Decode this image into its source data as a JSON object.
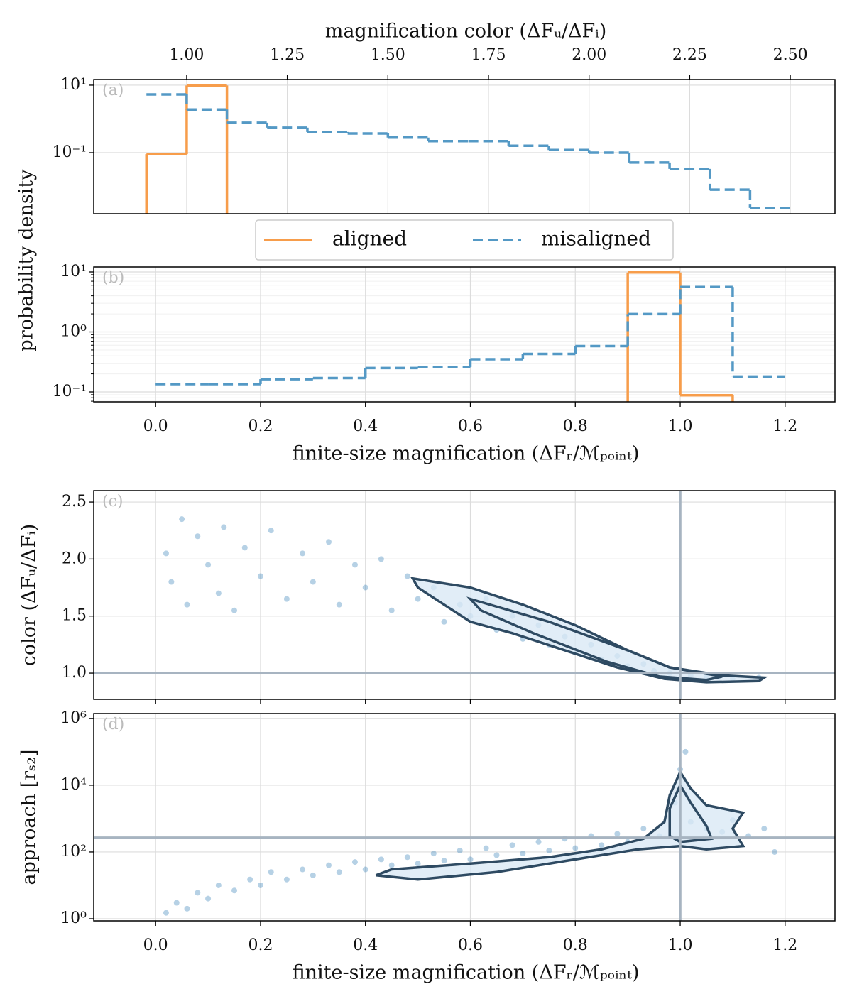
{
  "shared_ylabel": "probability density",
  "chart_data": [
    {
      "type": "histogram",
      "panel_label": "(a)",
      "xlabel": "magnification color (ΔFᵤ/ΔFᵢ)",
      "xlabel_position": "top",
      "xlim": [
        0.769,
        2.611
      ],
      "xticks": [
        {
          "value": 1,
          "label": "1.00"
        },
        1.25,
        {
          "value": 1.5,
          "label": "1.50"
        },
        1.75,
        {
          "value": 2,
          "label": "2.00"
        },
        2.25,
        {
          "value": 2.5,
          "label": "2.50"
        }
      ],
      "y_log": true,
      "ylim": [
        0.00155,
        14.7
      ],
      "yticks": [
        {
          "value": 10,
          "label": "10¹"
        },
        {
          "value": 0.1,
          "label": "10⁻¹"
        }
      ],
      "grid": true,
      "legend": "below",
      "series": [
        {
          "name": "aligned",
          "color": "#f79d4b",
          "linestyle": "solid",
          "closed": true,
          "bins": [
            0.9,
            1.0,
            1.1
          ],
          "values": [
            0.09,
            9.8
          ]
        },
        {
          "name": "misaligned",
          "color": "#5499c5",
          "linestyle": "dashed",
          "closed": false,
          "bins": [
            0.9,
            1.0,
            1.1,
            1.2,
            1.3,
            1.4,
            1.5,
            1.6,
            1.7,
            1.8,
            1.9,
            2.0,
            2.1,
            2.2,
            2.3,
            2.4,
            2.5
          ],
          "values": [
            5.3,
            1.9,
            0.77,
            0.55,
            0.41,
            0.37,
            0.28,
            0.22,
            0.22,
            0.16,
            0.12,
            0.1,
            0.051,
            0.033,
            0.008,
            0.0023
          ]
        }
      ]
    },
    {
      "type": "histogram",
      "panel_label": "(b)",
      "xlabel": "finite-size magnification (ΔFᵣ/ℳₚₒᵢₙₜ)",
      "xlabel_position": "bottom",
      "xlim": [
        -0.118,
        1.295
      ],
      "xticks": [
        {
          "value": 0,
          "label": "0.0"
        },
        0.2,
        0.4,
        0.6,
        0.8,
        {
          "value": 1,
          "label": "1.0"
        },
        1.2
      ],
      "y_log": true,
      "ylim": [
        0.0683,
        12.1
      ],
      "yticks": [
        {
          "value": 10,
          "label": "10¹"
        },
        {
          "value": 1,
          "label": "10⁰"
        },
        {
          "value": 0.1,
          "label": "10⁻¹"
        }
      ],
      "grid": true,
      "minor_grid": true,
      "series": [
        {
          "color": "#f79d4b",
          "linestyle": "solid",
          "closed": true,
          "bins": [
            0.9,
            1.0,
            1.1
          ],
          "values": [
            9.8,
            0.088
          ]
        },
        {
          "color": "#5499c5",
          "linestyle": "dashed",
          "closed": false,
          "bins": [
            0.0,
            0.1,
            0.2,
            0.3,
            0.4,
            0.5,
            0.6,
            0.7,
            0.8,
            0.9,
            1.0,
            1.1,
            1.2
          ],
          "values": [
            0.135,
            0.135,
            0.163,
            0.17,
            0.25,
            0.26,
            0.35,
            0.43,
            0.58,
            1.98,
            5.6,
            0.18
          ]
        }
      ]
    },
    {
      "type": "scatter",
      "panel_label": "(c)",
      "ylabel": "color (ΔFᵤ/ΔFᵢ)",
      "xlim": [
        -0.118,
        1.295
      ],
      "xticks": [
        0,
        0.2,
        0.4,
        0.6,
        0.8,
        1,
        1.2
      ],
      "xtick_labels": false,
      "y_log": false,
      "ylim": [
        0.77,
        2.6
      ],
      "yticks": [
        {
          "value": 1,
          "label": "1.0"
        },
        1.5,
        {
          "value": 2,
          "label": "2.0"
        },
        2.5
      ],
      "grid": true,
      "point_color": "#2f7bb5",
      "contour_color": "#2e4a62",
      "contour_fill": "#d9e8f5",
      "ref_color": "#a7b4c1",
      "ref_lines": {
        "x": 1.0,
        "y": 1.0
      },
      "points": {
        "x": [
          0.02,
          0.03,
          0.05,
          0.06,
          0.08,
          0.1,
          0.12,
          0.13,
          0.15,
          0.17,
          0.2,
          0.22,
          0.25,
          0.28,
          0.3,
          0.33,
          0.35,
          0.38,
          0.4,
          0.43,
          0.45,
          0.48,
          0.5,
          0.53,
          0.55,
          0.58,
          0.6,
          0.63,
          0.65,
          0.68,
          0.7,
          0.73,
          0.75,
          0.78,
          0.8,
          0.83,
          0.85,
          0.88,
          0.9,
          0.93,
          0.95,
          0.98,
          1.02,
          1.05,
          1.1,
          1.15
        ],
        "y": [
          2.05,
          1.8,
          2.35,
          1.6,
          2.2,
          1.95,
          1.7,
          2.28,
          1.55,
          2.1,
          1.85,
          2.25,
          1.65,
          2.05,
          1.8,
          2.15,
          1.6,
          1.95,
          1.75,
          2.0,
          1.55,
          1.85,
          1.65,
          1.75,
          1.45,
          1.6,
          1.5,
          1.65,
          1.38,
          1.5,
          1.3,
          1.42,
          1.25,
          1.32,
          1.18,
          1.25,
          1.12,
          1.15,
          1.06,
          1.08,
          1.02,
          1.0,
          0.98,
          0.96,
          0.95,
          0.96
        ]
      },
      "contours": [
        {
          "x": [
            0.49,
            0.6,
            0.7,
            0.8,
            0.9,
            0.98,
            1.08,
            1.16,
            1.15,
            1.05,
            0.97,
            0.88,
            0.78,
            0.68,
            0.6,
            0.55,
            0.5
          ],
          "y": [
            1.83,
            1.75,
            1.6,
            1.42,
            1.2,
            1.05,
            0.98,
            0.96,
            0.93,
            0.92,
            0.95,
            1.05,
            1.2,
            1.35,
            1.45,
            1.6,
            1.75
          ]
        },
        {
          "x": [
            0.6,
            0.75,
            0.9,
            0.98,
            1.08,
            1.05,
            0.96,
            0.86,
            0.72,
            0.62
          ],
          "y": [
            1.65,
            1.45,
            1.2,
            1.05,
            0.97,
            0.94,
            0.97,
            1.1,
            1.35,
            1.55
          ]
        }
      ]
    },
    {
      "type": "scatter",
      "panel_label": "(d)",
      "ylabel": "approach [rₛ₂]",
      "xlabel": "finite-size magnification (ΔFᵣ/ℳₚₒᵢₙₜ)",
      "xlabel_position": "bottom",
      "xlim": [
        -0.118,
        1.295
      ],
      "xticks": [
        {
          "value": 0,
          "label": "0.0"
        },
        0.2,
        0.4,
        0.6,
        0.8,
        {
          "value": 1,
          "label": "1.0"
        },
        1.2
      ],
      "y_log": true,
      "ylim": [
        0.863,
        1400000
      ],
      "yticks": [
        {
          "value": 1,
          "label": "10⁰"
        },
        {
          "value": 100,
          "label": "10²"
        },
        {
          "value": 10000,
          "label": "10⁴"
        },
        {
          "value": 1000000,
          "label": "10⁶"
        }
      ],
      "grid": true,
      "point_color": "#2f7bb5",
      "contour_color": "#2e4a62",
      "contour_fill": "#d9e8f5",
      "ref_color": "#a7b4c1",
      "ref_lines": {
        "x": 1.0,
        "y": 268
      },
      "points": {
        "x": [
          0.02,
          0.04,
          0.06,
          0.08,
          0.1,
          0.12,
          0.15,
          0.18,
          0.2,
          0.22,
          0.25,
          0.28,
          0.3,
          0.33,
          0.35,
          0.38,
          0.4,
          0.43,
          0.45,
          0.48,
          0.5,
          0.53,
          0.55,
          0.58,
          0.6,
          0.63,
          0.65,
          0.68,
          0.7,
          0.73,
          0.75,
          0.78,
          0.8,
          0.83,
          0.85,
          0.88,
          0.9,
          0.93,
          0.96,
          0.99,
          1.0,
          1.01,
          1.02,
          1.05,
          1.08,
          1.1,
          1.13,
          1.16,
          1.18
        ],
        "y": [
          1.5,
          3,
          2,
          6,
          4,
          10,
          7,
          15,
          10,
          25,
          15,
          30,
          20,
          40,
          25,
          50,
          30,
          60,
          40,
          70,
          45,
          90,
          55,
          110,
          60,
          130,
          80,
          160,
          90,
          200,
          110,
          250,
          130,
          300,
          160,
          350,
          200,
          500,
          300,
          3000,
          30000,
          100000,
          800,
          500,
          400,
          900,
          300,
          500,
          100
        ]
      },
      "contours": [
        {
          "x": [
            0.45,
            0.6,
            0.75,
            0.85,
            0.93,
            0.97,
            0.98,
            1.0,
            1.02,
            1.05,
            1.12,
            1.1,
            1.12,
            1.05,
            1.0,
            0.92,
            0.8,
            0.65,
            0.5,
            0.42
          ],
          "y": [
            30,
            45,
            70,
            120,
            250,
            800,
            5000,
            25000,
            8000,
            2500,
            1500,
            500,
            150,
            120,
            150,
            120,
            60,
            25,
            15,
            20
          ]
        },
        {
          "x": [
            0.98,
            0.98,
            1.0,
            1.02,
            1.05,
            1.06,
            1.0
          ],
          "y": [
            300,
            2000,
            10000,
            3000,
            600,
            250,
            200
          ]
        }
      ]
    }
  ]
}
